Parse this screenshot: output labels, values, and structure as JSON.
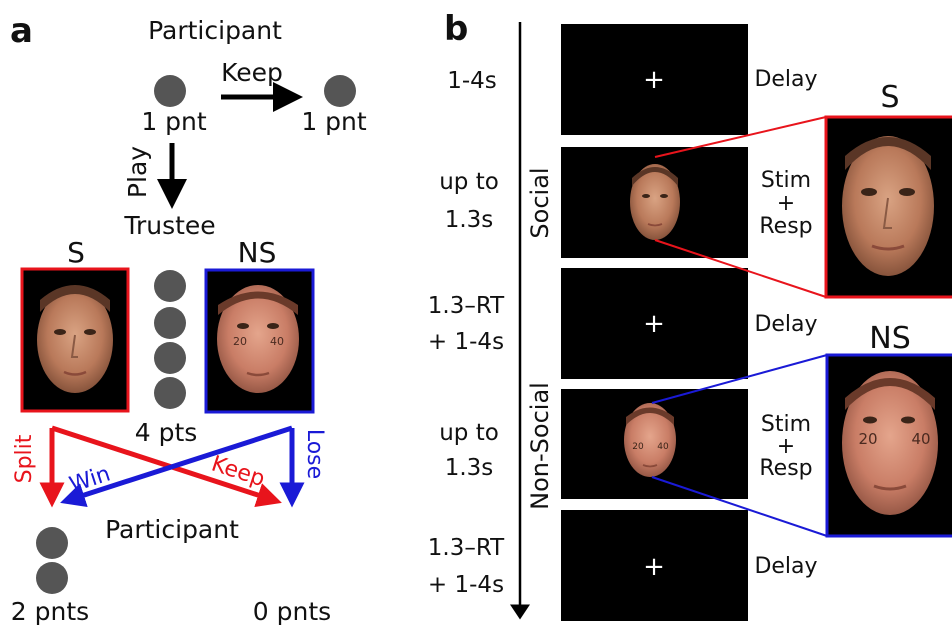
{
  "panel_a": {
    "letter": "a",
    "participant_top": "Participant",
    "keep_label": "Keep",
    "left_points": "1 pnt",
    "right_points": "1 pnt",
    "play_label": "Play",
    "trustee_label": "Trustee",
    "social_face_label": "S",
    "nonsocial_face_label": "NS",
    "face_numbers": [
      "20",
      "40"
    ],
    "trustee_points": "4 pts",
    "split_label": "Split",
    "win_label": "Win",
    "keep2_label": "Keep",
    "lose_label": "Lose",
    "participant_bottom": "Participant",
    "bottom_left_points": "2 pnts",
    "bottom_right_points": "0 pnts",
    "colors": {
      "red": "#e8141c",
      "blue": "#1a1ad6",
      "dot": "#555555"
    }
  },
  "panel_b": {
    "letter": "b",
    "timeline": [
      {
        "time": [
          "1-4s"
        ],
        "event": [
          "Delay"
        ],
        "screen": "fixation"
      },
      {
        "time": [
          "up to",
          "1.3s"
        ],
        "event": [
          "Stim",
          "+",
          "Resp"
        ],
        "screen": "social-face"
      },
      {
        "time": [
          "1.3–RT",
          "+ 1-4s"
        ],
        "event": [
          "Delay"
        ],
        "screen": "fixation"
      },
      {
        "time": [
          "up to",
          "1.3s"
        ],
        "event": [
          "Stim",
          "+",
          "Resp"
        ],
        "screen": "nonsocial-face"
      },
      {
        "time": [
          "1.3–RT",
          "+ 1-4s"
        ],
        "event": [
          "Delay"
        ],
        "screen": "fixation"
      }
    ],
    "fixation_symbol": "+",
    "social_label": "Social",
    "nonsocial_label": "Non-Social",
    "zoom_social_label": "S",
    "zoom_nonsocial_label": "NS",
    "zoom_numbers": [
      "20",
      "40"
    ]
  }
}
